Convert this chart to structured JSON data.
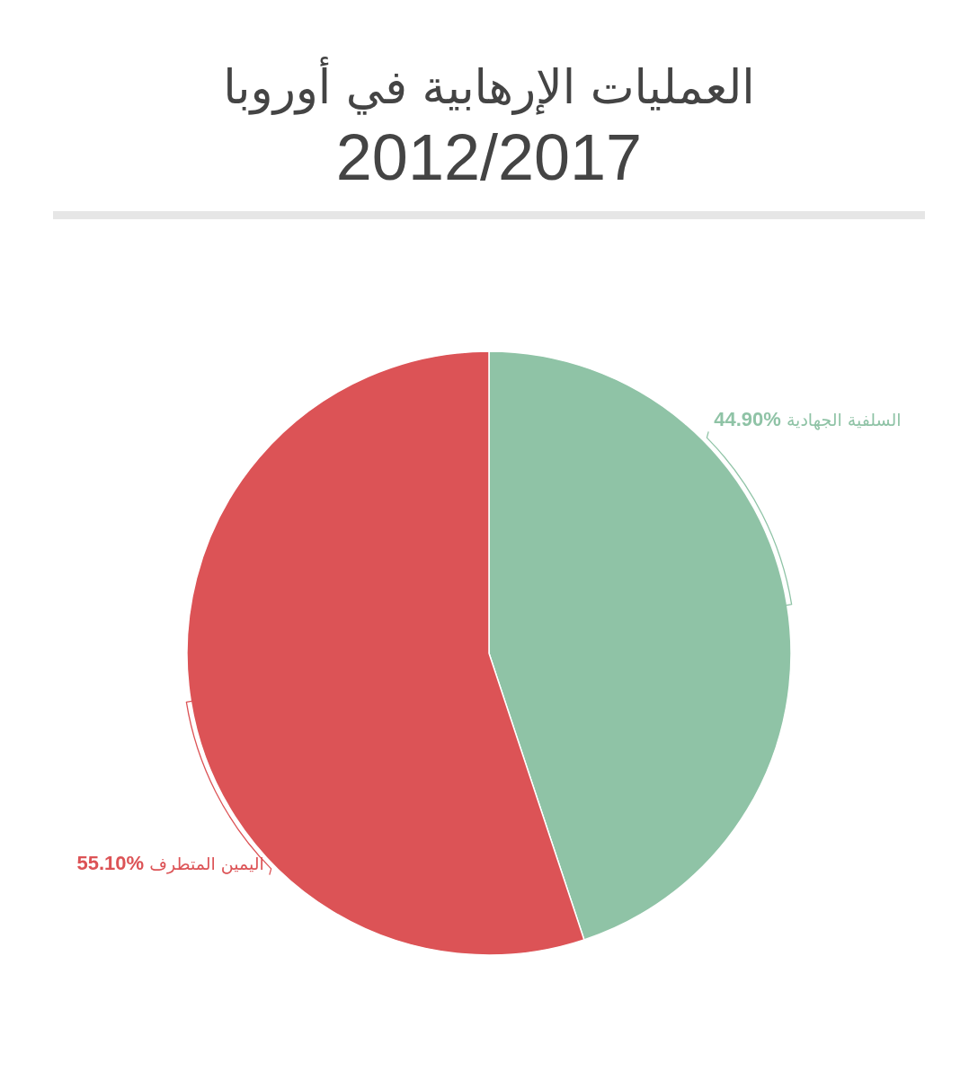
{
  "chart_data": {
    "type": "pie",
    "title": "العمليات الإرهابية في أوروبا",
    "subtitle": "2012/2017",
    "categories": [
      "السلفية الجهادية",
      "اليمين المتطرف"
    ],
    "values": [
      44.9,
      55.1
    ],
    "value_labels": [
      "44.90%",
      "55.10%"
    ],
    "colors": [
      "#8fc3a6",
      "#dc5356"
    ]
  }
}
